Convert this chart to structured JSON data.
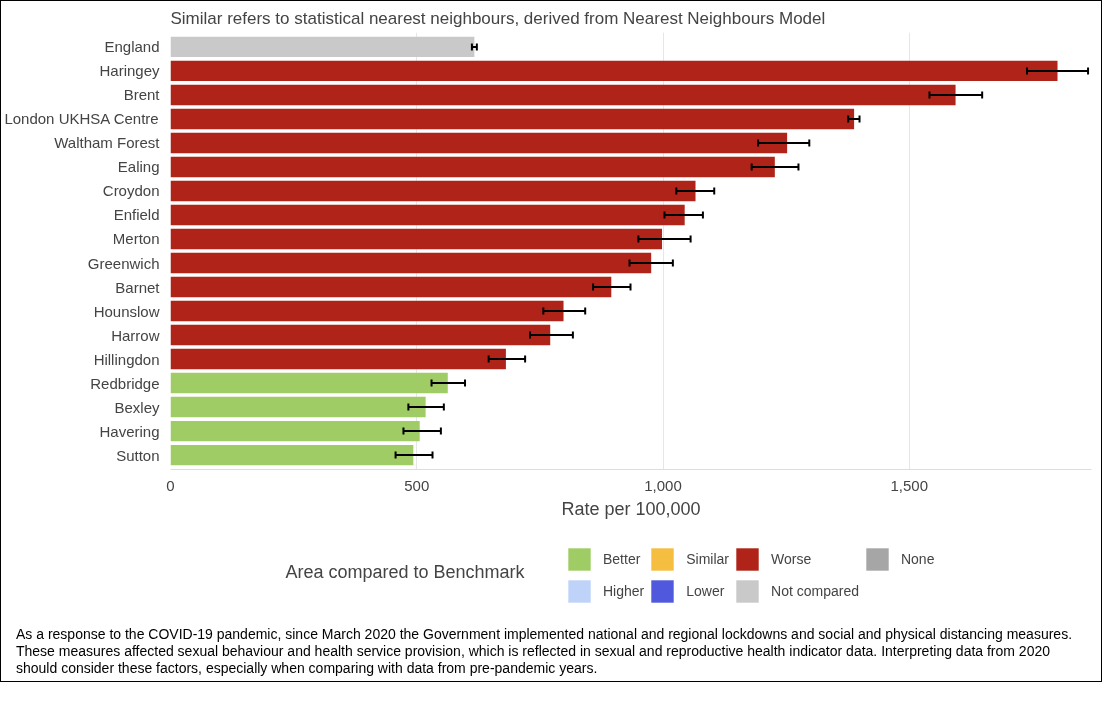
{
  "chart_data": {
    "type": "bar",
    "orientation": "horizontal",
    "title": "Similar refers to statistical nearest neighbours, derived from Nearest Neighbours Model",
    "categories": [
      "England",
      "Haringey",
      "Brent",
      "London UKHSA Centre",
      "Waltham Forest",
      "Ealing",
      "Croydon",
      "Enfield",
      "Merton",
      "Greenwich",
      "Barnet",
      "Hounslow",
      "Harrow",
      "Hillingdon",
      "Redbridge",
      "Bexley",
      "Havering",
      "Sutton"
    ],
    "series": [
      {
        "name": "Better",
        "color": "#a0cc65",
        "values": [
          null,
          null,
          null,
          null,
          null,
          null,
          null,
          null,
          null,
          null,
          null,
          null,
          null,
          null,
          563,
          518,
          506,
          493
        ],
        "errors": [
          null,
          null,
          null,
          null,
          null,
          null,
          null,
          null,
          null,
          null,
          null,
          null,
          null,
          null,
          [
            530,
            598
          ],
          [
            483,
            555
          ],
          [
            473,
            549
          ],
          [
            457,
            532
          ]
        ]
      },
      {
        "name": "Higher",
        "color": "#bfd3f9",
        "values": [
          null,
          null,
          null,
          null,
          null,
          null,
          null,
          null,
          null,
          null,
          null,
          null,
          null,
          null,
          null,
          null,
          null,
          null
        ]
      },
      {
        "name": "Similar",
        "color": "#f5be41",
        "values": [
          null,
          null,
          null,
          null,
          null,
          null,
          null,
          null,
          null,
          null,
          null,
          null,
          null,
          null,
          null,
          null,
          null,
          null
        ]
      },
      {
        "name": "Lower",
        "color": "#5059dd",
        "values": [
          null,
          null,
          null,
          null,
          null,
          null,
          null,
          null,
          null,
          null,
          null,
          null,
          null,
          null,
          null,
          null,
          null,
          null
        ]
      },
      {
        "name": "Worse",
        "color": "#af2318",
        "values": [
          null,
          1801,
          1594,
          1388,
          1252,
          1227,
          1066,
          1044,
          998,
          976,
          895,
          798,
          771,
          681,
          null,
          null,
          null,
          null
        ],
        "errors": [
          null,
          [
            1739,
            1863
          ],
          [
            1541,
            1648
          ],
          [
            1376,
            1399
          ],
          [
            1193,
            1297
          ],
          [
            1180,
            1275
          ],
          [
            1027,
            1104
          ],
          [
            1003,
            1081
          ],
          [
            950,
            1056
          ],
          [
            932,
            1020
          ],
          [
            858,
            934
          ],
          [
            757,
            842
          ],
          [
            730,
            817
          ],
          [
            646,
            720
          ],
          null,
          null,
          null,
          null
        ]
      },
      {
        "name": "Not compared",
        "color": "#c9c9c9",
        "values": [
          617,
          null,
          null,
          null,
          null,
          null,
          null,
          null,
          null,
          null,
          null,
          null,
          null,
          null,
          null,
          null,
          null,
          null
        ],
        "errors": [
          [
            612,
            622
          ],
          null,
          null,
          null,
          null,
          null,
          null,
          null,
          null,
          null,
          null,
          null,
          null,
          null,
          null,
          null,
          null,
          null
        ]
      },
      {
        "name": "None",
        "color": "#a6a6a6",
        "values": [
          null,
          null,
          null,
          null,
          null,
          null,
          null,
          null,
          null,
          null,
          null,
          null,
          null,
          null,
          null,
          null,
          null,
          null
        ]
      }
    ],
    "xlim": [
      0,
      1870
    ],
    "xticks": [
      0,
      500,
      {
        "value": 1000,
        "label": "1,000"
      },
      {
        "value": 1500,
        "label": "1,500"
      }
    ],
    "xlabel": "Rate per 100,000",
    "legend_title": "Area compared to Benchmark",
    "legend": "bottom",
    "grid": "x",
    "annotations": [
      "As a response to the COVID-19 pandemic, since March 2020 the Government implemented national and regional lockdowns and social and physical distancing measures. These measures affected sexual behaviour and health service provision, which is reflected in sexual and reproductive health indicator data. Interpreting data from 2020 should consider these factors, especially when comparing with data from pre-pandemic years."
    ]
  }
}
